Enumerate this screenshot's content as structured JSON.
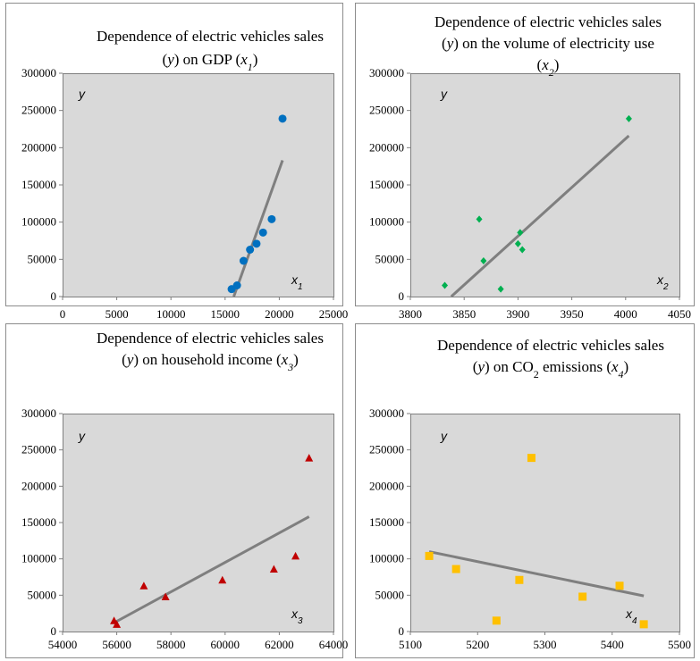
{
  "chart_data": [
    {
      "type": "scatter",
      "title_lines": [
        [
          {
            "t": "Dependence of electric vehicles sales"
          }
        ],
        [
          {
            "t": "("
          },
          {
            "t": "y",
            "i": true
          },
          {
            "t": ") on GDP ("
          },
          {
            "t": "x",
            "i": true
          },
          {
            "t": "1",
            "i": true,
            "sub": true
          },
          {
            "t": ")"
          }
        ]
      ],
      "ylabel": "y",
      "xlabel": [
        {
          "t": "x"
        },
        {
          "t": "1",
          "sub": true
        }
      ],
      "xlim": [
        0,
        25000
      ],
      "ylim": [
        0,
        300000
      ],
      "xticks": [
        "0",
        "5000",
        "10000",
        "15000",
        "20000",
        "25000"
      ],
      "yticks": [
        "0",
        "50000",
        "100000",
        "150000",
        "200000",
        "250000",
        "300000"
      ],
      "marker": "circle",
      "color": "#0070c0",
      "series": [
        {
          "x": [
            15600,
            16100,
            16700,
            17300,
            17900,
            18500,
            19300,
            20300
          ],
          "y": [
            10000,
            15000,
            48000,
            63000,
            71000,
            86000,
            104000,
            239000
          ]
        }
      ],
      "trend": {
        "x": [
          15800,
          20300
        ],
        "y": [
          0,
          183000
        ]
      }
    },
    {
      "type": "scatter",
      "title_lines": [
        [
          {
            "t": "Dependence of electric vehicles sales"
          }
        ],
        [
          {
            "t": "("
          },
          {
            "t": "y",
            "i": true
          },
          {
            "t": ") on the volume of electricity use"
          }
        ],
        [
          {
            "t": "("
          },
          {
            "t": "x",
            "i": true
          },
          {
            "t": "2",
            "i": true,
            "sub": true
          },
          {
            "t": ")"
          }
        ]
      ],
      "ylabel": "y",
      "xlabel": [
        {
          "t": "x"
        },
        {
          "t": "2",
          "sub": true
        }
      ],
      "xlim": [
        3800,
        4050
      ],
      "ylim": [
        0,
        300000
      ],
      "xticks": [
        "3800",
        "3850",
        "3900",
        "3950",
        "4000",
        "4050"
      ],
      "yticks": [
        "0",
        "50000",
        "100000",
        "150000",
        "200000",
        "250000",
        "300000"
      ],
      "marker": "diamond",
      "color": "#00b050",
      "series": [
        {
          "x": [
            3832,
            3864,
            3868,
            3884,
            3900,
            3902,
            3904,
            4003
          ],
          "y": [
            15000,
            104000,
            48000,
            10000,
            71000,
            86000,
            63000,
            239000
          ]
        }
      ],
      "trend": {
        "x": [
          3838,
          4003
        ],
        "y": [
          0,
          216000
        ]
      }
    },
    {
      "type": "scatter",
      "title_lines": [
        [
          {
            "t": "Dependence of electric vehicles sales"
          }
        ],
        [
          {
            "t": "("
          },
          {
            "t": "y",
            "i": true
          },
          {
            "t": ") on household income ("
          },
          {
            "t": "x",
            "i": true
          },
          {
            "t": "3",
            "i": true,
            "sub": true
          },
          {
            "t": ")"
          }
        ]
      ],
      "ylabel": "y",
      "xlabel": [
        {
          "t": "x"
        },
        {
          "t": "3",
          "sub": true
        }
      ],
      "xlim": [
        54000,
        64000
      ],
      "ylim": [
        0,
        300000
      ],
      "xticks": [
        "54000",
        "56000",
        "58000",
        "60000",
        "62000",
        "64000"
      ],
      "yticks": [
        "0",
        "50000",
        "100000",
        "150000",
        "200000",
        "250000",
        "300000"
      ],
      "marker": "triangle",
      "color": "#c00000",
      "series": [
        {
          "x": [
            55900,
            56000,
            57000,
            57800,
            59900,
            61800,
            62600,
            63100
          ],
          "y": [
            15000,
            10000,
            63000,
            48000,
            71000,
            86000,
            104000,
            239000
          ]
        }
      ],
      "trend": {
        "x": [
          55900,
          63100
        ],
        "y": [
          12000,
          158000
        ]
      }
    },
    {
      "type": "scatter",
      "title_lines": [
        [
          {
            "t": "Dependence of electric vehicles sales"
          }
        ],
        [
          {
            "t": "("
          },
          {
            "t": "y",
            "i": true
          },
          {
            "t": ") on CO"
          },
          {
            "t": "2",
            "sub": true
          },
          {
            "t": " emissions ("
          },
          {
            "t": "x",
            "i": true
          },
          {
            "t": "4",
            "i": true,
            "sub": true
          },
          {
            "t": ")"
          }
        ]
      ],
      "ylabel": "y",
      "xlabel": [
        {
          "t": "x"
        },
        {
          "t": "4",
          "sub": true
        }
      ],
      "xlim": [
        5100,
        5500
      ],
      "ylim": [
        0,
        300000
      ],
      "xticks": [
        "5100",
        "5200",
        "5300",
        "5400",
        "5500"
      ],
      "yticks": [
        "0",
        "50000",
        "100000",
        "150000",
        "200000",
        "250000",
        "300000"
      ],
      "marker": "square",
      "color": "#ffc000",
      "series": [
        {
          "x": [
            5128,
            5168,
            5228,
            5262,
            5280,
            5356,
            5411,
            5447
          ],
          "y": [
            104000,
            86000,
            15000,
            71000,
            239000,
            48000,
            63000,
            10000
          ]
        }
      ],
      "trend": {
        "x": [
          5128,
          5447
        ],
        "y": [
          110000,
          49000
        ]
      }
    }
  ]
}
